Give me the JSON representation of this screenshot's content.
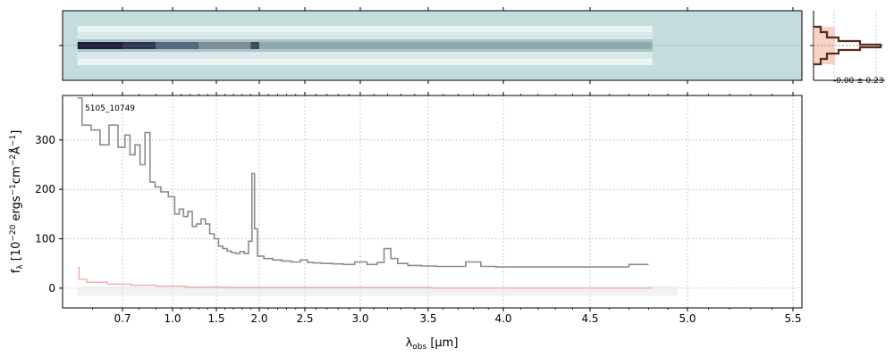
{
  "chart_data": [
    {
      "panel": "spectrum-2d",
      "type": "heatmap",
      "background_color": "#c5dcdc",
      "trace_color": "#1b1b3a",
      "wavelength_range_um": [
        0.55,
        4.82
      ]
    },
    {
      "panel": "profile",
      "type": "line",
      "annotation": "-0.00 ± 0.23",
      "profile_color": "#5a2a1e",
      "fill_color": "#f5c8b8"
    },
    {
      "panel": "spectrum-1d",
      "type": "line",
      "object_label": "5105_10749",
      "xlabel": "λobs [μm]",
      "ylabel": "fλ [10⁻²⁰ ergs⁻¹cm⁻²Å⁻¹]",
      "x_scale": "non-linear (prism resolution)",
      "x_range": [
        0.5,
        5.55
      ],
      "ylim": [
        -40,
        390
      ],
      "grid": true,
      "x_ticks": [
        0.7,
        1.0,
        1.5,
        2.0,
        2.5,
        3.0,
        3.5,
        4.0,
        4.5,
        5.0,
        5.5
      ],
      "x_tick_labels": [
        "0.7",
        "1.0",
        "1.5",
        "2.0",
        "2.5",
        "3.0",
        "3.5",
        "4.0",
        "4.5",
        "5.0",
        "5.5"
      ],
      "y_ticks": [
        0,
        100,
        200,
        300
      ],
      "series": [
        {
          "color": "#8c8c8c",
          "style": "step",
          "points": [
            [
              0.55,
              385
            ],
            [
              0.58,
              330
            ],
            [
              0.61,
              320
            ],
            [
              0.64,
              290
            ],
            [
              0.67,
              330
            ],
            [
              0.7,
              285
            ],
            [
              0.73,
              310
            ],
            [
              0.76,
              270
            ],
            [
              0.79,
              290
            ],
            [
              0.82,
              250
            ],
            [
              0.85,
              315
            ],
            [
              0.88,
              215
            ],
            [
              0.91,
              205
            ],
            [
              0.95,
              195
            ],
            [
              1.0,
              185
            ],
            [
              1.05,
              150
            ],
            [
              1.1,
              160
            ],
            [
              1.15,
              145
            ],
            [
              1.2,
              155
            ],
            [
              1.25,
              125
            ],
            [
              1.3,
              130
            ],
            [
              1.35,
              140
            ],
            [
              1.4,
              130
            ],
            [
              1.45,
              110
            ],
            [
              1.5,
              100
            ],
            [
              1.55,
              85
            ],
            [
              1.6,
              80
            ],
            [
              1.65,
              75
            ],
            [
              1.7,
              72
            ],
            [
              1.75,
              70
            ],
            [
              1.8,
              74
            ],
            [
              1.85,
              70
            ],
            [
              1.9,
              95
            ],
            [
              1.93,
              232
            ],
            [
              1.96,
              120
            ],
            [
              2.0,
              65
            ],
            [
              2.1,
              60
            ],
            [
              2.2,
              57
            ],
            [
              2.3,
              55
            ],
            [
              2.4,
              53
            ],
            [
              2.5,
              57
            ],
            [
              2.55,
              52
            ],
            [
              2.6,
              51
            ],
            [
              2.7,
              50
            ],
            [
              2.8,
              49
            ],
            [
              2.9,
              48
            ],
            [
              3.0,
              53
            ],
            [
              3.1,
              48
            ],
            [
              3.15,
              52
            ],
            [
              3.2,
              80
            ],
            [
              3.25,
              60
            ],
            [
              3.3,
              50
            ],
            [
              3.4,
              46
            ],
            [
              3.5,
              45
            ],
            [
              3.6,
              44
            ],
            [
              3.7,
              44
            ],
            [
              3.8,
              53
            ],
            [
              3.9,
              44
            ],
            [
              4.0,
              43
            ],
            [
              4.2,
              43
            ],
            [
              4.4,
              43
            ],
            [
              4.6,
              43
            ],
            [
              4.8,
              48
            ]
          ]
        },
        {
          "color": "#f4a6a6",
          "style": "step",
          "points": [
            [
              0.55,
              42
            ],
            [
              0.56,
              18
            ],
            [
              0.6,
              12
            ],
            [
              0.7,
              8
            ],
            [
              0.8,
              6
            ],
            [
              1.0,
              4
            ],
            [
              1.3,
              2
            ],
            [
              2.0,
              1
            ],
            [
              3.0,
              1
            ],
            [
              4.0,
              0
            ],
            [
              4.82,
              0
            ]
          ]
        }
      ]
    }
  ]
}
